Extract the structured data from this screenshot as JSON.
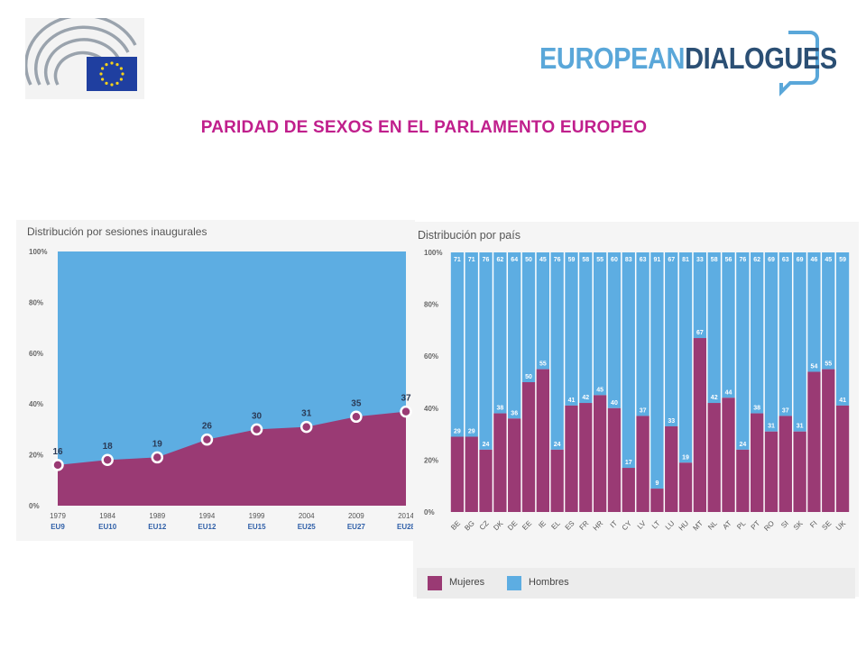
{
  "header": {
    "headline": "PARIDAD DE SEXOS EN EL PARLAMENTO EUROPEO",
    "brand_part1": "EUROPEAN",
    "brand_part2": "DIALOGUES"
  },
  "colors": {
    "mujeres": "#9a3a74",
    "hombres": "#5dade2",
    "headline": "#c01f8c",
    "ep_flag": "#1f3fa0",
    "ep_stars": "#f6d21b"
  },
  "legend": {
    "mujeres": "Mujeres",
    "hombres": "Hombres"
  },
  "chart_data": [
    {
      "type": "area",
      "title": "Distribución por sesiones inaugurales",
      "ylim": [
        0,
        100
      ],
      "yticks": [
        "0%",
        "20%",
        "40%",
        "60%",
        "80%",
        "100%"
      ],
      "ytick_values": [
        0,
        20,
        40,
        60,
        80,
        100
      ],
      "x": [
        "1979",
        "1984",
        "1989",
        "1994",
        "1999",
        "2004",
        "2009",
        "2014"
      ],
      "x_sublabels": [
        "EU9",
        "EU10",
        "EU12",
        "EU12",
        "EU15",
        "EU25",
        "EU27",
        "EU28"
      ],
      "series": [
        {
          "name": "Mujeres",
          "values": [
            16,
            18,
            19,
            26,
            30,
            31,
            35,
            37
          ]
        },
        {
          "name": "Hombres",
          "values": [
            84,
            82,
            81,
            74,
            70,
            69,
            65,
            63
          ]
        }
      ],
      "grid": false
    },
    {
      "type": "bar",
      "title": "Distribución por país",
      "stacked": true,
      "ylim": [
        0,
        100
      ],
      "yticks": [
        "0%",
        "20%",
        "40%",
        "60%",
        "80%",
        "100%"
      ],
      "ytick_values": [
        0,
        20,
        40,
        60,
        80,
        100
      ],
      "categories": [
        "BE",
        "BG",
        "CZ",
        "DK",
        "DE",
        "EE",
        "IE",
        "EL",
        "ES",
        "FR",
        "HR",
        "IT",
        "CY",
        "LV",
        "LT",
        "LU",
        "HU",
        "MT",
        "NL",
        "AT",
        "PL",
        "PT",
        "RO",
        "SI",
        "SK",
        "FI",
        "SE",
        "UK"
      ],
      "series": [
        {
          "name": "Mujeres",
          "values": [
            29,
            29,
            24,
            38,
            36,
            50,
            55,
            24,
            41,
            42,
            45,
            40,
            17,
            37,
            9,
            33,
            19,
            67,
            42,
            44,
            24,
            38,
            31,
            37,
            31,
            54,
            55,
            41
          ]
        },
        {
          "name": "Hombres",
          "values": [
            71,
            71,
            76,
            62,
            64,
            50,
            45,
            76,
            59,
            58,
            55,
            60,
            83,
            63,
            91,
            67,
            81,
            33,
            58,
            56,
            76,
            62,
            69,
            63,
            69,
            46,
            45,
            59
          ]
        }
      ],
      "legend_position": "bottom-left"
    }
  ]
}
